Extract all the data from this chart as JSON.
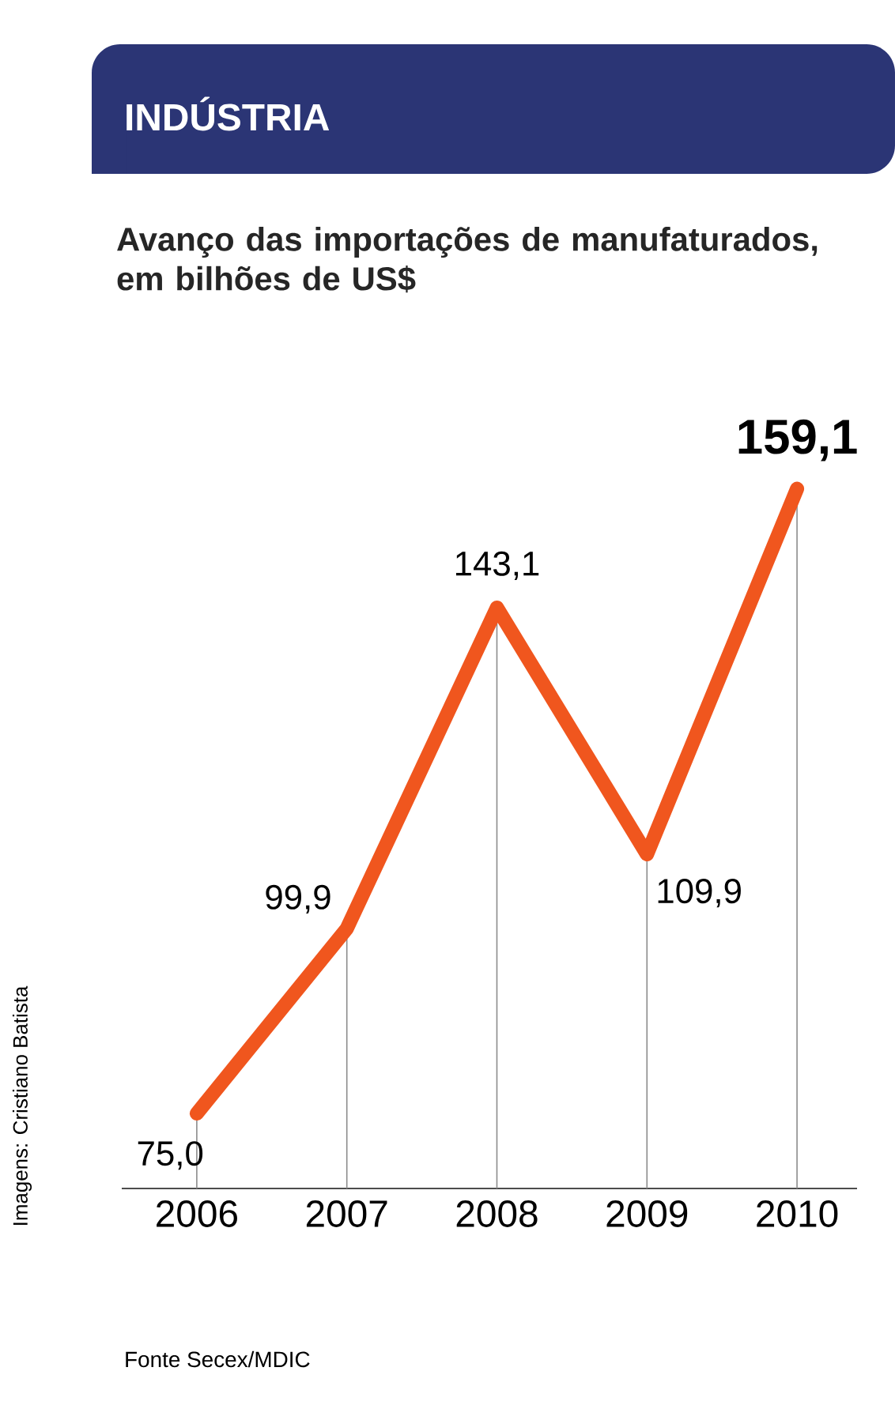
{
  "chart_data": {
    "type": "line",
    "title": "INDÚSTRIA",
    "subtitle": "Avanço das importações de manufaturados, em bilhões de US$",
    "categories": [
      "2006",
      "2007",
      "2008",
      "2009",
      "2010"
    ],
    "values": [
      75.0,
      99.9,
      143.1,
      109.9,
      159.1
    ],
    "value_labels": [
      "75,0",
      "99,9",
      "143,1",
      "109,9",
      "159,1"
    ],
    "color": "#f0561e",
    "annotations": [
      "Fonte Secex/MDIC",
      "Imagens: Cristiano Batista"
    ]
  }
}
